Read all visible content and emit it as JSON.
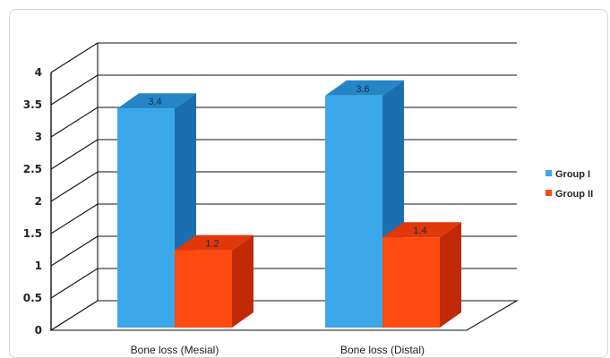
{
  "chart_data": {
    "type": "bar",
    "title": "",
    "xlabel": "",
    "ylabel": "",
    "categories": [
      "Bone loss (Mesial)",
      "Bone loss (Distal)"
    ],
    "series": [
      {
        "name": "Group I",
        "values": [
          3.4,
          3.6
        ],
        "color": "#3aa8e8",
        "side": "#1c6fae",
        "top": "#2486c6"
      },
      {
        "name": "Group II",
        "values": [
          1.2,
          1.4
        ],
        "color": "#ff4a12",
        "side": "#c02a06",
        "top": "#e03808"
      }
    ],
    "data_labels": [
      [
        "3.4",
        "3.6"
      ],
      [
        "1.2",
        "1.4"
      ]
    ],
    "yticks": [
      "0",
      "0.5",
      "1",
      "1.5",
      "2",
      "2.5",
      "3",
      "3.5",
      "4"
    ],
    "ylim": [
      0,
      4
    ],
    "grid": true,
    "legend": "right",
    "style": "3d-clustered-column"
  }
}
